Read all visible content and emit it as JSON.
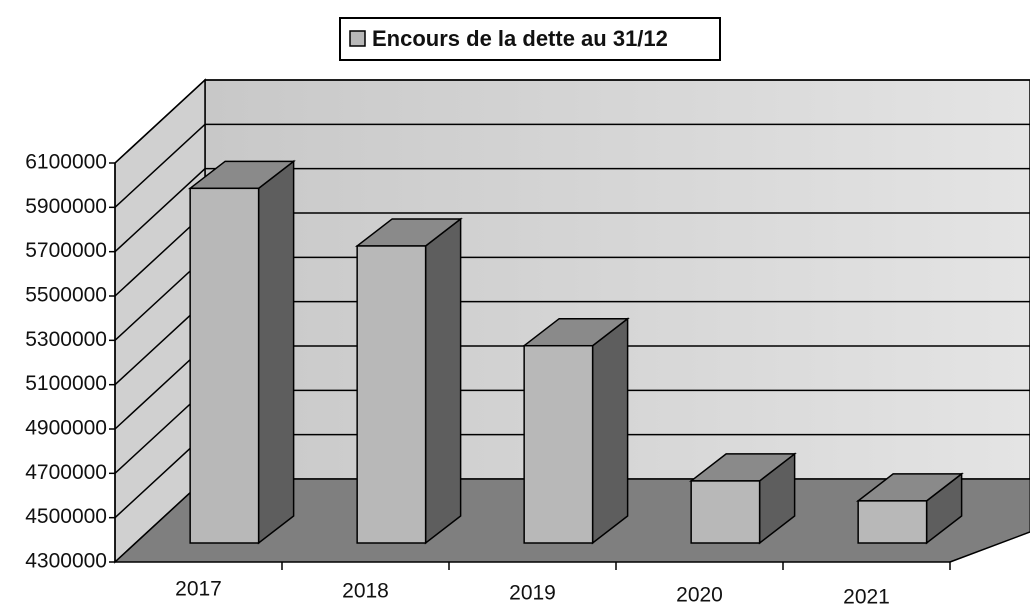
{
  "chart_data": {
    "type": "bar3d",
    "legend": "Encours de la dette au 31/12",
    "categories": [
      "2017",
      "2018",
      "2019",
      "2020",
      "2021"
    ],
    "values": [
      5900000,
      5640000,
      5190000,
      4580000,
      4490000
    ],
    "color": "#b8b8b8",
    "ylim": [
      4300000,
      6100000
    ],
    "yticks": [
      4300000,
      4500000,
      4700000,
      4900000,
      5100000,
      5300000,
      5500000,
      5700000,
      5900000,
      6100000
    ],
    "grid": true
  }
}
